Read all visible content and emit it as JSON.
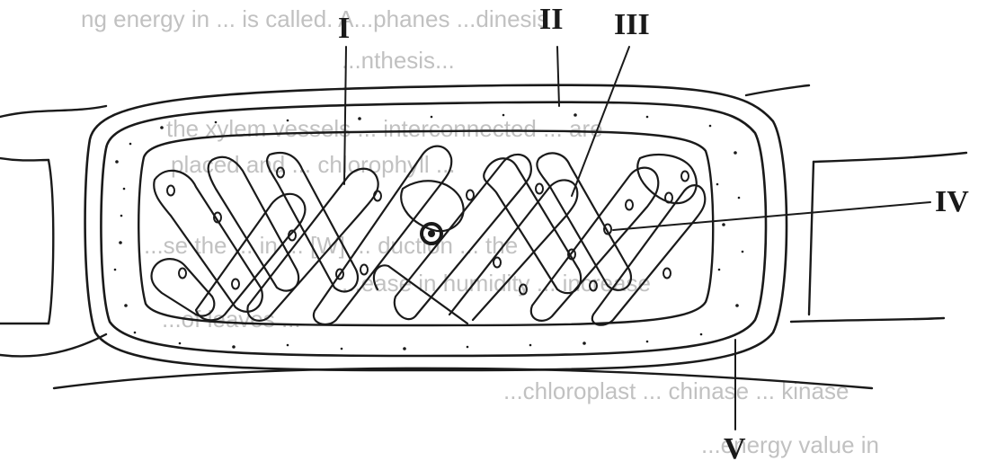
{
  "labels": {
    "I": "I",
    "II": "II",
    "III": "III",
    "IV": "IV",
    "V": "V"
  },
  "bleed_text": [
    "ng energy in ... is called. A...phanes ...dinesis",
    "...nthesis...",
    "the xylem vessels ... interconnected ... are",
    "placed and ... chlorophyll ...",
    "...se the ... in ... [W] ... duction ... the",
    "...ease in humidity ... increase",
    "...of leaves ...",
    "...chloroplast ... chinase ... kinase",
    "...energy value in"
  ],
  "colors": {
    "ink": "#1a1a1a",
    "paper": "#ffffff",
    "bleed": "#8f8f8f"
  }
}
